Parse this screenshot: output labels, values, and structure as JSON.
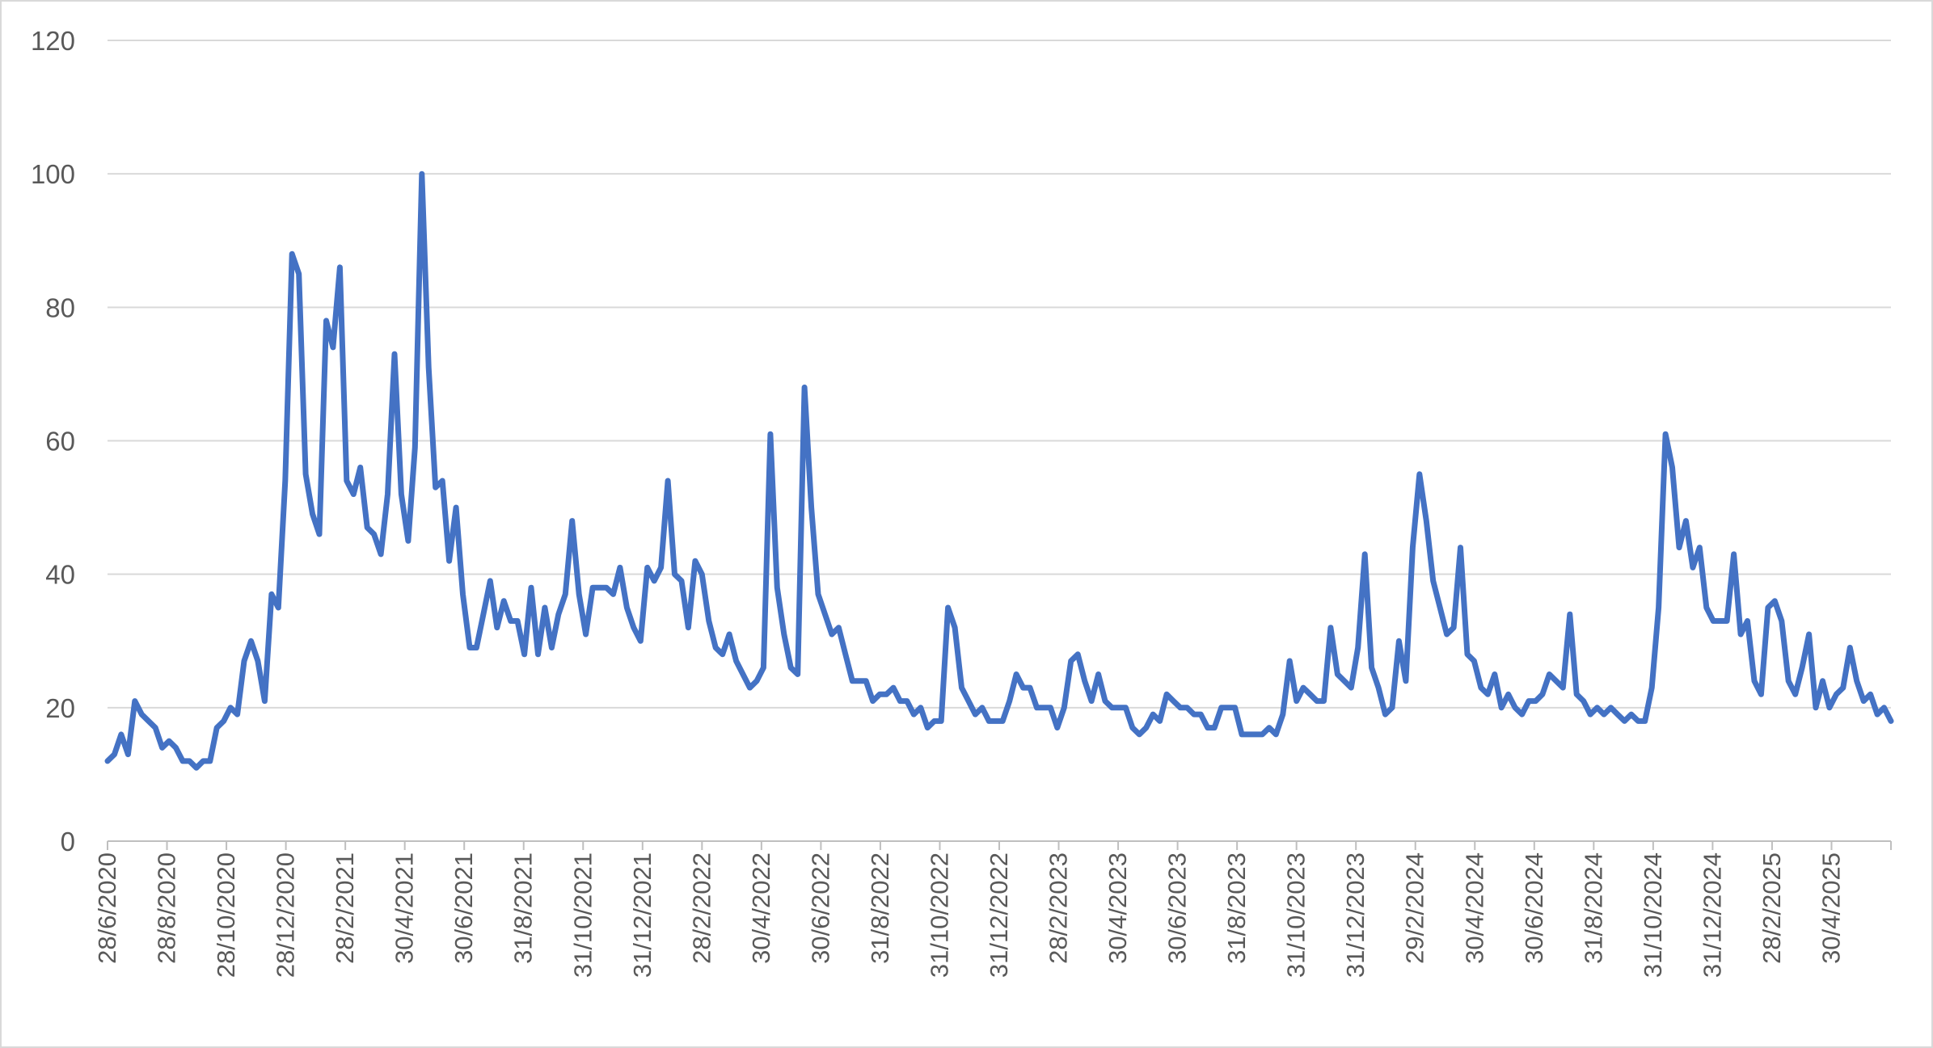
{
  "chart_data": {
    "type": "line",
    "title": "",
    "xlabel": "",
    "ylabel": "",
    "ylim": [
      0,
      120
    ],
    "y_ticks": [
      0,
      20,
      40,
      60,
      80,
      100,
      120
    ],
    "x_tick_labels": [
      "28/6/2020",
      "28/8/2020",
      "28/10/2020",
      "28/12/2020",
      "28/2/2021",
      "30/4/2021",
      "30/6/2021",
      "31/8/2021",
      "31/10/2021",
      "31/12/2021",
      "28/2/2022",
      "30/4/2022",
      "30/6/2022",
      "31/8/2022",
      "31/10/2022",
      "31/12/2022",
      "28/2/2023",
      "30/4/2023",
      "30/6/2023",
      "31/8/2023",
      "31/10/2023",
      "31/12/2023",
      "29/2/2024",
      "30/4/2024",
      "30/6/2024",
      "31/8/2024",
      "31/10/2024",
      "31/12/2024",
      "28/2/2025",
      "30/4/2025"
    ],
    "grid": true,
    "legend": "none",
    "colors": {
      "line": "#4472C4",
      "grid": "#D9D9D9",
      "axis": "#BFBFBF",
      "text": "#595959"
    },
    "series": [
      {
        "x_start": "28/6/2020",
        "x_end": "29/6/2025",
        "values": [
          12,
          13,
          16,
          13,
          21,
          19,
          18,
          17,
          14,
          15,
          14,
          12,
          12,
          11,
          12,
          12,
          17,
          18,
          20,
          19,
          27,
          30,
          27,
          21,
          37,
          35,
          54,
          88,
          85,
          55,
          49,
          46,
          78,
          74,
          86,
          54,
          52,
          56,
          47,
          46,
          43,
          52,
          73,
          52,
          45,
          59,
          100,
          71,
          53,
          54,
          42,
          50,
          37,
          29,
          29,
          34,
          39,
          32,
          36,
          33,
          33,
          28,
          38,
          28,
          35,
          29,
          34,
          37,
          48,
          37,
          31,
          38,
          38,
          38,
          37,
          41,
          35,
          32,
          30,
          41,
          39,
          41,
          54,
          40,
          39,
          32,
          42,
          40,
          33,
          29,
          28,
          31,
          27,
          25,
          23,
          24,
          26,
          61,
          38,
          31,
          26,
          25,
          68,
          50,
          37,
          34,
          31,
          32,
          28,
          24,
          24,
          24,
          21,
          22,
          22,
          23,
          21,
          21,
          19,
          20,
          17,
          18,
          18,
          35,
          32,
          23,
          21,
          19,
          20,
          18,
          18,
          18,
          21,
          25,
          23,
          23,
          20,
          20,
          20,
          17,
          20,
          27,
          28,
          24,
          21,
          25,
          21,
          20,
          20,
          20,
          17,
          16,
          17,
          19,
          18,
          22,
          21,
          20,
          20,
          19,
          19,
          17,
          17,
          20,
          20,
          20,
          16,
          16,
          16,
          16,
          17,
          16,
          19,
          27,
          21,
          23,
          22,
          21,
          21,
          32,
          25,
          24,
          23,
          29,
          43,
          26,
          23,
          19,
          20,
          30,
          24,
          44,
          55,
          48,
          39,
          35,
          31,
          32,
          44,
          28,
          27,
          23,
          22,
          25,
          20,
          22,
          20,
          19,
          21,
          21,
          22,
          25,
          24,
          23,
          34,
          22,
          21,
          19,
          20,
          19,
          20,
          19,
          18,
          19,
          18,
          18,
          23,
          35,
          61,
          56,
          44,
          48,
          41,
          44,
          35,
          33,
          33,
          33,
          43,
          31,
          33,
          24,
          22,
          35,
          36,
          33,
          24,
          22,
          26,
          31,
          20,
          24,
          20,
          22,
          23,
          29,
          24,
          21,
          22,
          19,
          20,
          18
        ]
      }
    ]
  }
}
